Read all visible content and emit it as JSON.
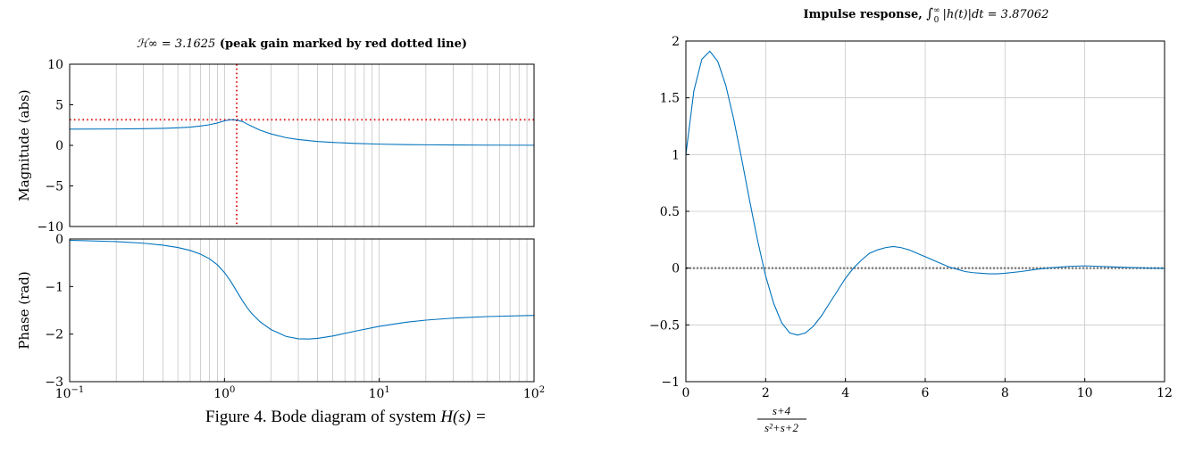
{
  "figure": {
    "caption_text": "Figure 4. Bode diagram of system ",
    "caption_lhs": "H(s) = ",
    "caption_num": "s+4",
    "caption_den": "s²+s+2"
  },
  "chart_data": [
    {
      "id": "magnitude",
      "type": "line",
      "title_lhs": "ℋ∞ = 3.1625",
      "title_rest": " (peak gain marked by red dotted line)",
      "xlabel": "",
      "ylabel": "Magnitude (abs)",
      "xscale": "log",
      "xlim": [
        0.1,
        100
      ],
      "ylim": [
        -10,
        10
      ],
      "yticks": [
        -10,
        -5,
        0,
        5,
        10
      ],
      "grid": "vertical minor+major (log decades)",
      "series": [
        {
          "color": "#0072bd",
          "x": [
            0.1,
            0.2,
            0.3,
            0.4,
            0.5,
            0.6,
            0.7,
            0.8,
            0.9,
            1.0,
            1.1,
            1.2,
            1.26,
            1.3,
            1.4,
            1.5,
            1.7,
            2.0,
            2.5,
            3.0,
            4.0,
            5.0,
            7.0,
            10.0,
            15.0,
            20.0,
            30.0,
            50.0,
            100.0
          ],
          "y": [
            2.002,
            2.02,
            2.05,
            2.09,
            2.16,
            2.25,
            2.38,
            2.54,
            2.75,
            3.03,
            3.16,
            3.13,
            3.0,
            2.96,
            2.63,
            2.35,
            1.87,
            1.41,
            0.95,
            0.72,
            0.47,
            0.36,
            0.24,
            0.15,
            0.094,
            0.069,
            0.045,
            0.027,
            0.0134
          ]
        }
      ],
      "reference_lines": {
        "color": "#e41a1c",
        "peak_gain": 3.1625,
        "peak_frequency": 1.2
      }
    },
    {
      "id": "phase",
      "type": "line",
      "xlabel": "",
      "ylabel": "Phase (rad)",
      "xscale": "log",
      "xlim": [
        0.1,
        100
      ],
      "ylim": [
        -3,
        0
      ],
      "yticks": [
        -3,
        -2,
        -1,
        0
      ],
      "xticks": [
        {
          "base": "10",
          "exp": "−1"
        },
        {
          "base": "10",
          "exp": "0"
        },
        {
          "base": "10",
          "exp": "1"
        },
        {
          "base": "10",
          "exp": "2"
        }
      ],
      "grid": "vertical minor+major (log decades)",
      "series": [
        {
          "color": "#0072bd",
          "x": [
            0.1,
            0.2,
            0.3,
            0.4,
            0.5,
            0.6,
            0.7,
            0.8,
            0.9,
            1.0,
            1.1,
            1.2,
            1.3,
            1.4,
            1.5,
            1.7,
            2.0,
            2.5,
            3.0,
            3.5,
            4.0,
            5.0,
            7.0,
            10.0,
            15.0,
            20.0,
            30.0,
            50.0,
            100.0
          ],
          "y": [
            -0.026,
            -0.055,
            -0.089,
            -0.13,
            -0.179,
            -0.24,
            -0.318,
            -0.416,
            -0.543,
            -0.705,
            -0.897,
            -1.098,
            -1.285,
            -1.442,
            -1.567,
            -1.743,
            -1.905,
            -2.049,
            -2.098,
            -2.103,
            -2.089,
            -2.04,
            -1.938,
            -1.836,
            -1.749,
            -1.706,
            -1.664,
            -1.631,
            -1.606
          ]
        }
      ]
    },
    {
      "id": "impulse",
      "type": "line",
      "title_text": "Impulse response, ",
      "title_int": "∫",
      "title_sup": "∞",
      "title_sub": "0",
      "title_expr": " |h(t)|dt = 3.87062",
      "xlabel": "",
      "ylabel": "",
      "xlim": [
        0,
        12
      ],
      "ylim": [
        -1,
        2
      ],
      "xticks": [
        0,
        2,
        4,
        6,
        8,
        10,
        12
      ],
      "yticks": [
        -1,
        -0.5,
        0,
        0.5,
        1,
        1.5,
        2
      ],
      "grid": "major both axes",
      "series": [
        {
          "color": "#0072bd",
          "x": [
            0,
            0.2,
            0.4,
            0.6,
            0.8,
            1.0,
            1.2,
            1.4,
            1.6,
            1.8,
            2.0,
            2.2,
            2.4,
            2.6,
            2.8,
            3.0,
            3.2,
            3.4,
            3.6,
            3.8,
            4.0,
            4.2,
            4.4,
            4.6,
            4.8,
            5.0,
            5.2,
            5.4,
            5.6,
            5.8,
            6.0,
            6.2,
            6.4,
            6.6,
            6.8,
            7.0,
            7.2,
            7.4,
            7.6,
            7.8,
            8.0,
            8.4,
            8.8,
            9.2,
            9.6,
            10.0,
            10.4,
            10.8,
            11.2,
            11.6,
            12.0
          ],
          "y": [
            1.0,
            1.56,
            1.84,
            1.91,
            1.82,
            1.61,
            1.31,
            0.96,
            0.59,
            0.24,
            -0.07,
            -0.31,
            -0.48,
            -0.57,
            -0.59,
            -0.57,
            -0.51,
            -0.42,
            -0.31,
            -0.2,
            -0.09,
            0.0,
            0.07,
            0.13,
            0.16,
            0.18,
            0.19,
            0.18,
            0.16,
            0.13,
            0.1,
            0.07,
            0.04,
            0.01,
            -0.01,
            -0.03,
            -0.04,
            -0.045,
            -0.05,
            -0.05,
            -0.045,
            -0.03,
            -0.01,
            0.005,
            0.015,
            0.02,
            0.015,
            0.01,
            0.005,
            0.0,
            -0.002
          ]
        }
      ],
      "reference_lines": {
        "zero_line_color": "#808080"
      }
    }
  ]
}
